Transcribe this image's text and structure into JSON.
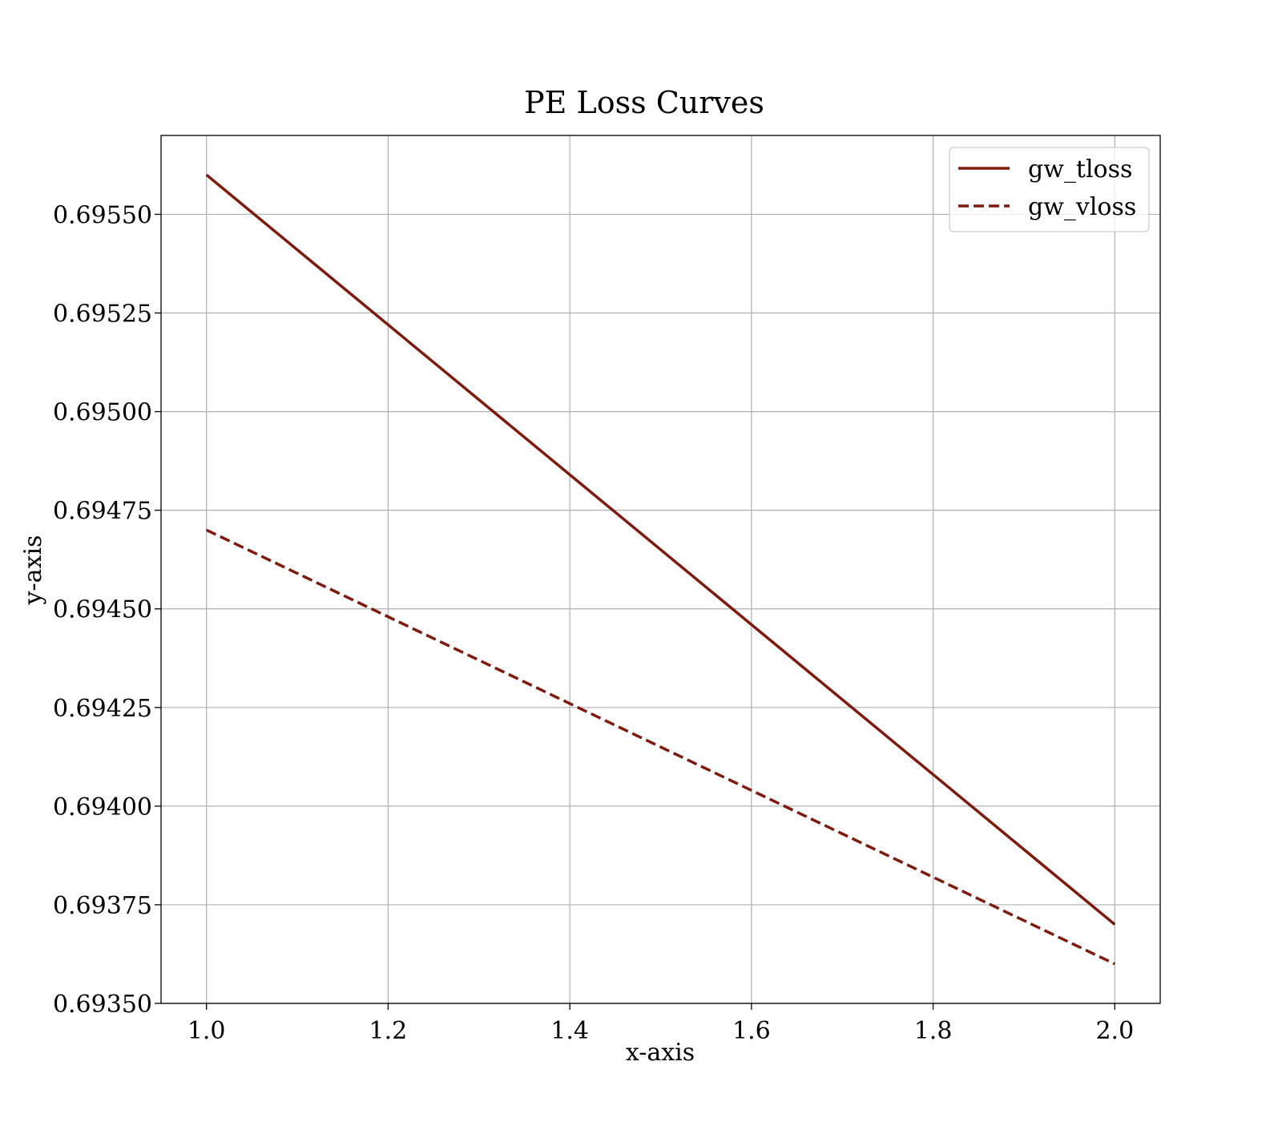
{
  "chart_data": {
    "type": "line",
    "title": "PE Loss Curves",
    "xlabel": "x-axis",
    "ylabel": "y-axis",
    "x": [
      1.0,
      2.0
    ],
    "xlim": [
      0.95,
      2.05
    ],
    "ylim": [
      0.6935,
      0.6957
    ],
    "xticks": [
      1.0,
      1.2,
      1.4,
      1.6,
      1.8,
      2.0
    ],
    "xtick_labels": [
      "1.0",
      "1.2",
      "1.4",
      "1.6",
      "1.8",
      "2.0"
    ],
    "yticks": [
      0.6935,
      0.69375,
      0.694,
      0.69425,
      0.6945,
      0.69475,
      0.695,
      0.69525,
      0.6955
    ],
    "ytick_labels": [
      "0.69350",
      "0.69375",
      "0.69400",
      "0.69425",
      "0.69450",
      "0.69475",
      "0.69500",
      "0.69525",
      "0.69550"
    ],
    "grid": true,
    "legend_position": "top-right",
    "series": [
      {
        "name": "gw_tloss",
        "values": [
          0.6956,
          0.6937
        ],
        "color": "#7f1a0e",
        "style": "solid"
      },
      {
        "name": "gw_vloss",
        "values": [
          0.6947,
          0.6936
        ],
        "color": "#7f1a0e",
        "style": "dashed"
      }
    ]
  }
}
